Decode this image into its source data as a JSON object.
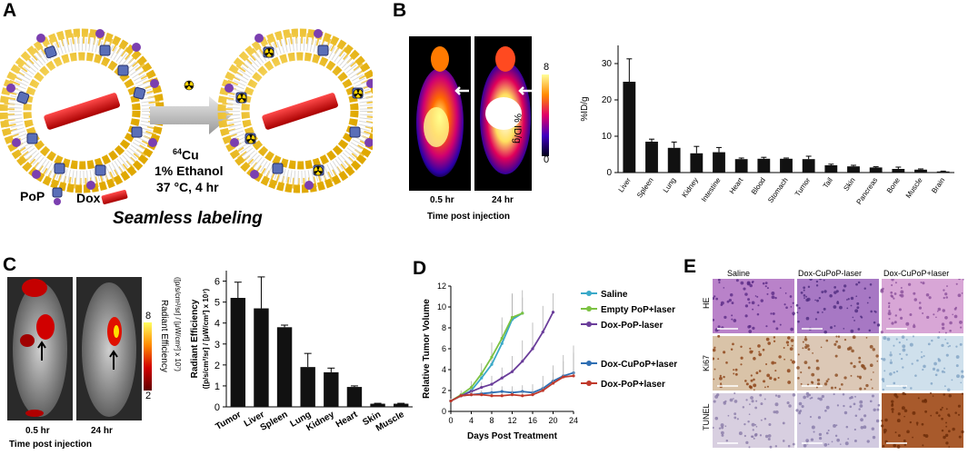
{
  "panel_letters": {
    "a": "A",
    "b": "B",
    "c": "C",
    "d": "D",
    "e": "E"
  },
  "panel_a": {
    "copper_label": "64Cu",
    "copper_mass": "64",
    "copper_symbol": "Cu",
    "ethanol_label": "1% Ethanol",
    "temp_label": "37 °C, 4 hr",
    "pop_label": "PoP",
    "dox_label": "Dox",
    "caption": "Seamless labeling"
  },
  "panel_b": {
    "time_labels": [
      "0.5 hr",
      "24 hr"
    ],
    "xlabel": "Time post injection",
    "colorbar_max": "8",
    "colorbar_min": "0",
    "colorbar_label": "% ID/g"
  },
  "panel_c": {
    "time_labels": [
      "0.5 hr",
      "24 hr"
    ],
    "xlabel": "Time post injection",
    "colorbar_max": "8",
    "colorbar_min": "2",
    "colorbar_title": "Radiant Efficiency",
    "colorbar_units": "([p/s/cm²/sr] / [μW/cm²] x 10⁷)"
  },
  "panel_e": {
    "col_labels": [
      "Saline",
      "Dox-CuPoP-laser",
      "Dox-CuPoP+laser"
    ],
    "row_labels": [
      "HE",
      "Ki67",
      "TUNEL"
    ]
  },
  "colors": {
    "green": "#7cc242",
    "cyan": "#3aa9c9",
    "purple": "#6a3d9a",
    "blue": "#2f6fb3",
    "red": "#c0392b",
    "bar": "#111111"
  },
  "chart_data": [
    {
      "id": "B",
      "type": "bar",
      "title": "",
      "xlabel": "",
      "ylabel": "%ID/g",
      "ylim": [
        0,
        35
      ],
      "yticks": [
        "0",
        "10",
        "20",
        "30"
      ],
      "categories": [
        "Liver",
        "Spleen",
        "Lung",
        "Kidney",
        "Intestine",
        "Heart",
        "Blood",
        "Stomach",
        "Tumor",
        "Tail",
        "Skin",
        "Pancreas",
        "Bone",
        "Muscle",
        "Brain"
      ],
      "values": [
        25,
        8.5,
        6.8,
        5.3,
        5.6,
        3.7,
        3.8,
        3.8,
        3.7,
        2.0,
        1.7,
        1.4,
        1.0,
        0.8,
        0.3
      ],
      "errors": [
        6.3,
        0.7,
        1.6,
        1.9,
        1.3,
        0.3,
        0.4,
        0.2,
        0.8,
        0.3,
        0.3,
        0.2,
        0.5,
        0.2,
        0.1
      ]
    },
    {
      "id": "C",
      "type": "bar",
      "title": "",
      "xlabel": "",
      "ylabel": "Radiant Efficiency",
      "ylabel2": "([p/s/cm²/sr] / [μW/cm²] x 10⁷)",
      "ylim": [
        0,
        6.5
      ],
      "yticks": [
        "0",
        "1",
        "2",
        "3",
        "4",
        "5",
        "6"
      ],
      "categories": [
        "Tumor",
        "Liver",
        "Spleen",
        "Lung",
        "Kidney",
        "Heart",
        "Skin",
        "Muscle"
      ],
      "values": [
        5.2,
        4.7,
        3.8,
        1.9,
        1.65,
        0.95,
        0.15,
        0.15
      ],
      "errors": [
        0.75,
        1.5,
        0.1,
        0.65,
        0.2,
        0.05,
        0.02,
        0.02
      ]
    },
    {
      "id": "D",
      "type": "line",
      "title": "",
      "xlabel": "Days Post Treatment",
      "ylabel": "Relative Tumor Volume",
      "xlim": [
        0,
        24
      ],
      "ylim": [
        0,
        12
      ],
      "xticks": [
        "0",
        "4",
        "8",
        "12",
        "16",
        "20",
        "24"
      ],
      "yticks": [
        "0",
        "2",
        "4",
        "6",
        "8",
        "10",
        "12"
      ],
      "series": [
        {
          "name": "Saline",
          "color": "#3aa9c9",
          "x": [
            0,
            2,
            4,
            6,
            8,
            10,
            12,
            14
          ],
          "y": [
            1.0,
            1.5,
            2.0,
            3.2,
            4.5,
            6.5,
            8.8,
            9.4
          ],
          "err": [
            0.2,
            0.3,
            0.5,
            0.8,
            1.2,
            1.8,
            2.5,
            2.2
          ]
        },
        {
          "name": "Empty PoP+laser",
          "color": "#7cc242",
          "x": [
            0,
            2,
            4,
            6,
            8,
            10,
            12,
            14
          ],
          "y": [
            1.0,
            1.6,
            2.3,
            3.6,
            5.2,
            7.0,
            9.0,
            9.4
          ],
          "err": [
            0.2,
            0.4,
            0.6,
            1.0,
            1.4,
            2.0,
            2.2,
            1.5
          ]
        },
        {
          "name": "Dox-PoP-laser",
          "color": "#6a3d9a",
          "x": [
            0,
            2,
            4,
            6,
            8,
            10,
            12,
            14,
            16,
            18,
            20
          ],
          "y": [
            1.0,
            1.5,
            1.9,
            2.3,
            2.6,
            3.2,
            3.8,
            4.8,
            6.0,
            7.6,
            9.5
          ],
          "err": [
            0.2,
            0.2,
            0.3,
            0.5,
            0.8,
            1.0,
            1.5,
            2.0,
            2.5,
            2.5,
            1.8
          ]
        },
        {
          "name": "Dox-CuPoP+laser",
          "color": "#2f6fb3",
          "x": [
            0,
            2,
            4,
            6,
            8,
            10,
            12,
            14,
            16,
            18,
            20,
            22,
            24
          ],
          "y": [
            1.0,
            1.5,
            1.6,
            1.7,
            1.8,
            1.9,
            1.8,
            1.9,
            1.8,
            2.2,
            2.9,
            3.4,
            3.7
          ],
          "err": [
            0.2,
            0.2,
            0.3,
            0.3,
            0.5,
            0.5,
            0.6,
            0.6,
            0.8,
            1.2,
            1.5,
            2.0,
            2.6
          ]
        },
        {
          "name": "Dox-PoP+laser",
          "color": "#c0392b",
          "x": [
            0,
            2,
            4,
            6,
            8,
            10,
            12,
            14,
            16,
            18,
            20,
            22,
            24
          ],
          "y": [
            1.0,
            1.5,
            1.6,
            1.6,
            1.5,
            1.5,
            1.6,
            1.5,
            1.6,
            2.0,
            2.7,
            3.3,
            3.4
          ],
          "err": [
            0.2,
            0.2,
            0.2,
            0.3,
            0.3,
            0.3,
            0.4,
            0.4,
            0.5,
            0.6,
            1.0,
            1.5,
            2.2
          ]
        }
      ]
    }
  ]
}
